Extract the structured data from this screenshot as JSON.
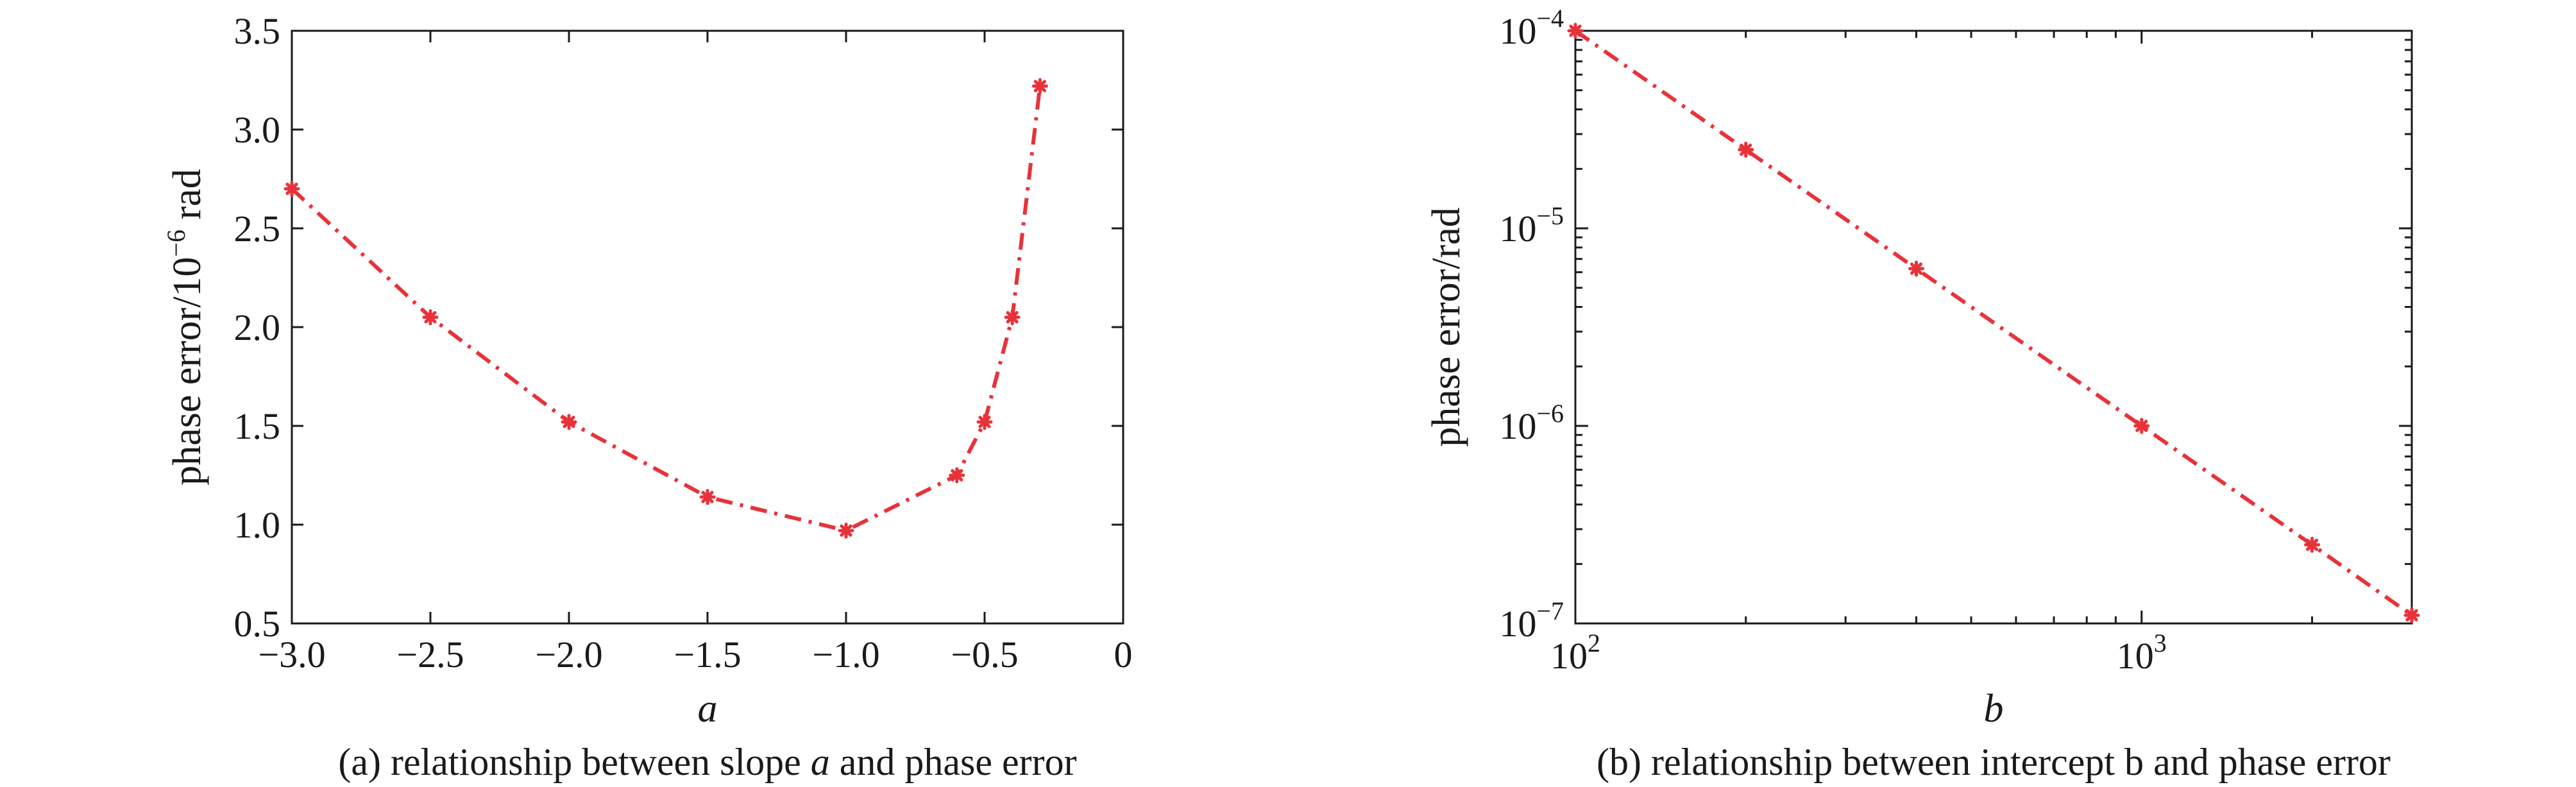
{
  "colors": {
    "series": "#e8323a",
    "axis": "#1a1a1a"
  },
  "chart_data": [
    {
      "type": "line",
      "caption": "(a) relationship between slope a and phase error",
      "caption_parts": [
        "(a) relationship between slope ",
        "a",
        " and phase error"
      ],
      "xlabel": "a",
      "ylabel": "phase error/10⁻⁶ rad",
      "ylabel_parts": [
        "phase error/10",
        "−6",
        " rad"
      ],
      "xscale": "linear",
      "yscale": "linear",
      "xlim": [
        -3.0,
        0
      ],
      "ylim": [
        0.5,
        3.5
      ],
      "xticks": [
        -3.0,
        -2.5,
        -2.0,
        -1.5,
        -1.0,
        -0.5,
        0
      ],
      "xtick_labels": [
        "−3.0",
        "−2.5",
        "−2.0",
        "−1.5",
        "−1.0",
        "−0.5",
        "0"
      ],
      "yticks": [
        0.5,
        1.0,
        1.5,
        2.0,
        2.5,
        3.0,
        3.5
      ],
      "ytick_labels": [
        "0.5",
        "1.0",
        "1.5",
        "2.0",
        "2.5",
        "3.0",
        "3.5"
      ],
      "grid": false,
      "series": [
        {
          "color": "#e8323a",
          "line_style": "dash-dot",
          "marker": "asterisk",
          "x": [
            -3.0,
            -2.5,
            -2.0,
            -1.5,
            -1.0,
            -0.6,
            -0.5,
            -0.4,
            -0.3
          ],
          "y": [
            2.7,
            2.05,
            1.52,
            1.14,
            0.97,
            1.25,
            1.52,
            2.05,
            3.22
          ]
        }
      ]
    },
    {
      "type": "line",
      "caption": "(b) relationship between intercept b and phase error",
      "caption_parts": [
        "(b) relationship between intercept b and phase error"
      ],
      "xlabel": "b",
      "ylabel": "phase error/rad",
      "xscale": "log",
      "yscale": "log",
      "xlim": [
        100,
        3000
      ],
      "ylim": [
        1e-07,
        0.0001
      ],
      "xtick_labels": [
        {
          "base": "10",
          "exp": "2"
        },
        {
          "base": "10",
          "exp": "3"
        }
      ],
      "ytick_labels": [
        {
          "base": "10",
          "exp": "−7"
        },
        {
          "base": "10",
          "exp": "−6"
        },
        {
          "base": "10",
          "exp": "−5"
        },
        {
          "base": "10",
          "exp": "−4"
        }
      ],
      "grid": false,
      "series": [
        {
          "color": "#e8323a",
          "line_style": "dash-dot",
          "marker": "asterisk",
          "x": [
            100,
            200,
            400,
            1000,
            2000,
            3000
          ],
          "y": [
            0.0001,
            2.5e-05,
            6.25e-06,
            1e-06,
            2.5e-07,
            1.1e-07
          ]
        }
      ]
    }
  ]
}
